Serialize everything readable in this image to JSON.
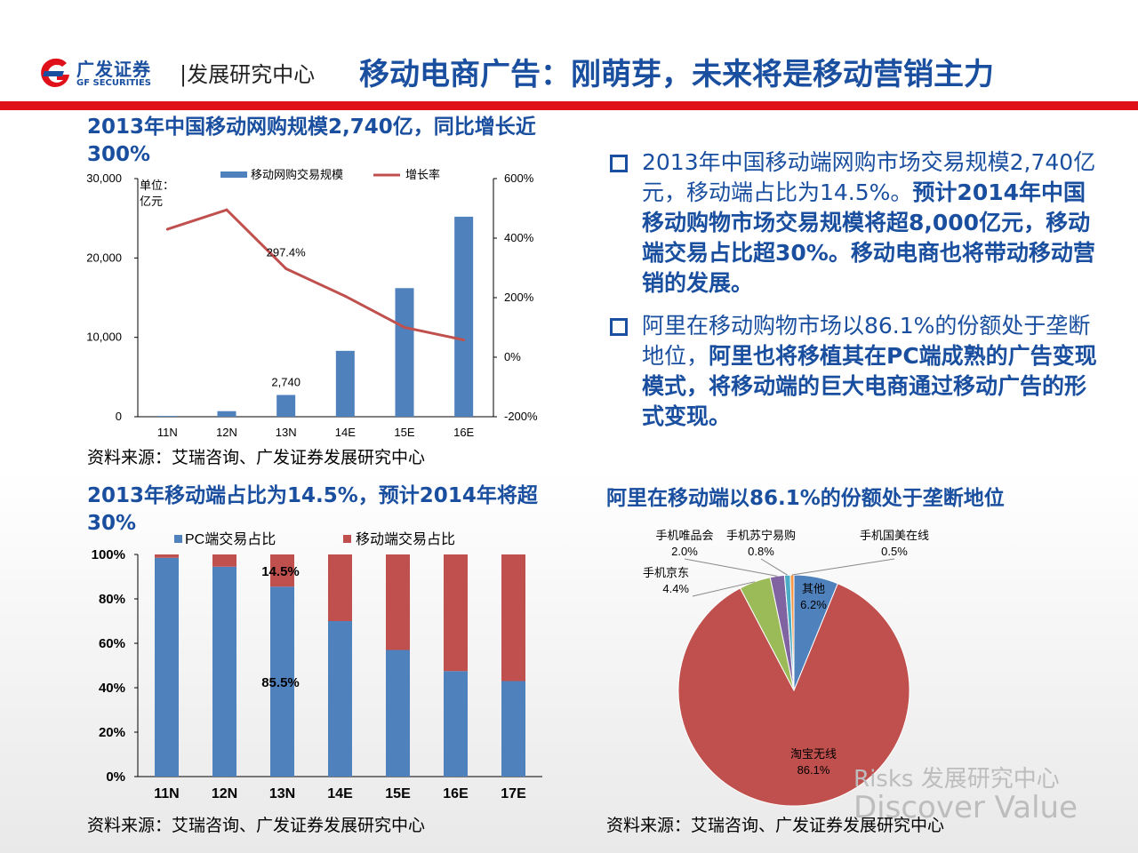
{
  "header": {
    "brand_cn": "广发证券",
    "brand_en": "GF SECURITIES",
    "dept": "|发展研究中心",
    "title": "移动电商广告：刚萌芽，未来将是移动营销主力",
    "accent": "#e0101b",
    "blue": "#1a4fa0"
  },
  "bullets": [
    {
      "normal": "2013年中国移动端网购市场交易规模2,740亿元，移动端占比为14.5%。",
      "bold": "预计2014年中国移动购物市场交易规模将超8,000亿元，移动端交易占比超30%。移动电商也将带动移动营销的发展。"
    },
    {
      "normal": "阿里在移动购物市场以86.1%的份额处于垄断地位，",
      "bold": "阿里也将移植其在PC端成熟的广告变现模式，将移动端的巨大电商通过移动广告的形式变现。"
    }
  ],
  "chart_data": [
    {
      "type": "bar",
      "title": "2013年中国移动网购规模2,740亿，同比增长近300%",
      "unit_label": "单位：亿元",
      "categories": [
        "11N",
        "12N",
        "13N",
        "14E",
        "15E",
        "16E"
      ],
      "series": [
        {
          "name": "移动网购交易规模",
          "axis": "left",
          "color": "#4f81bd",
          "values": [
            100,
            700,
            2740,
            8300,
            16200,
            25200
          ]
        },
        {
          "name": "增长率",
          "axis": "right",
          "type": "line",
          "color": "#c0504d",
          "values": [
            430,
            495,
            297.4,
            205,
            100,
            58
          ]
        }
      ],
      "annotations": [
        {
          "text": "2,740",
          "category": "13N",
          "series": 0
        },
        {
          "text": "297.4%",
          "category": "13N",
          "series": 1
        }
      ],
      "ylim": [
        0,
        30000
      ],
      "yticks": [
        "0",
        "10,000",
        "20,000",
        "30,000"
      ],
      "y2lim": [
        -200,
        600
      ],
      "y2ticks": [
        "-200%",
        "0%",
        "200%",
        "400%",
        "600%"
      ],
      "legend": "top"
    },
    {
      "type": "bar",
      "stacked": true,
      "title": "2013年移动端占比为14.5%，预计2014年将超30%",
      "categories": [
        "11N",
        "12N",
        "13N",
        "14E",
        "15E",
        "16E",
        "17E"
      ],
      "series": [
        {
          "name": "PC端交易占比",
          "color": "#4f81bd",
          "values": [
            98.5,
            94.5,
            85.5,
            70,
            57,
            47.5,
            43
          ]
        },
        {
          "name": "移动端交易占比",
          "color": "#c0504d",
          "values": [
            1.5,
            5.5,
            14.5,
            30,
            43,
            52.5,
            57
          ]
        }
      ],
      "annotations": [
        {
          "text": "14.5%",
          "category": "13N",
          "series": 1
        },
        {
          "text": "85.5%",
          "category": "13N",
          "series": 0
        }
      ],
      "ylim": [
        0,
        100
      ],
      "yticks": [
        "0%",
        "20%",
        "40%",
        "60%",
        "80%",
        "100%"
      ],
      "legend": "top"
    },
    {
      "type": "pie",
      "title": "阿里在移动端以86.1%的份额处于垄断地位",
      "slices": [
        {
          "name": "其他",
          "value": 6.2,
          "label": "6.2%",
          "color": "#4f81bd"
        },
        {
          "name": "淘宝无线",
          "value": 86.1,
          "label": "86.1%",
          "color": "#c0504d"
        },
        {
          "name": "手机京东",
          "value": 4.4,
          "label": "4.4%",
          "color": "#9bbb59"
        },
        {
          "name": "手机唯品会",
          "value": 2.0,
          "label": "2.0%",
          "color": "#8064a2"
        },
        {
          "name": "手机苏宁易购",
          "value": 0.8,
          "label": "0.8%",
          "color": "#4bacc6"
        },
        {
          "name": "手机国美在线",
          "value": 0.5,
          "label": "0.5%",
          "color": "#f79646"
        }
      ]
    }
  ],
  "source": "资料来源：艾瑞咨询、广发证券发展研究中心",
  "watermark": {
    "line1": "Risks 发展研究中心",
    "line2": "Discover Value"
  }
}
